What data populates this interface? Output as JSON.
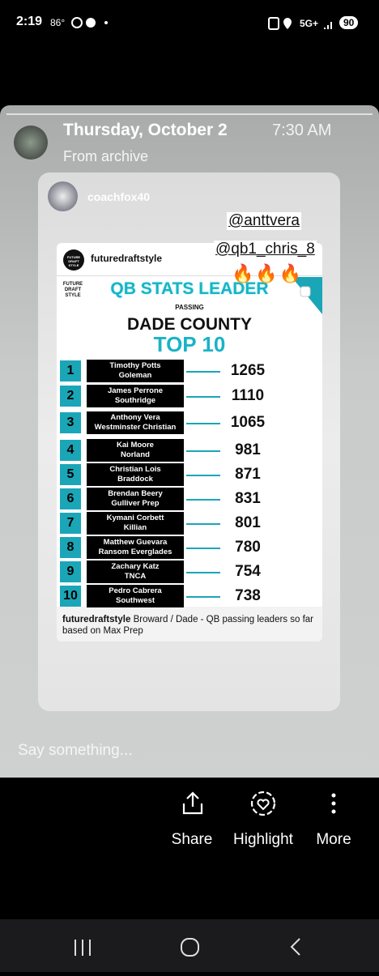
{
  "status_bar": {
    "time": "2:19",
    "temperature": "86°",
    "network": "5G+",
    "battery": "90"
  },
  "story": {
    "date": "Thursday, October 2",
    "time": "7:30 AM",
    "source": "From archive"
  },
  "post": {
    "username": "coachfox40",
    "mentions": [
      "@anttvera",
      "@qb1_chris_8"
    ],
    "emoji": "🔥🔥🔥",
    "image": {
      "account": "futuredraftstyle",
      "logo": "FUTURE DRAFT STYLE",
      "brand": "FUTURE DRAFT STYLE",
      "title": "QB STATS LEADER",
      "subtitle": "PASSING",
      "region": "DADE COUNTY",
      "heading": "TOP 10",
      "rows": [
        {
          "rank": 1,
          "name": "Timothy Potts",
          "school": "Goleman",
          "yards": 1265
        },
        {
          "rank": 2,
          "name": "James Perrone",
          "school": "Southridge",
          "yards": 1110
        },
        {
          "rank": 3,
          "name": "Anthony Vera",
          "school": "Westminster Christian",
          "yards": 1065
        },
        {
          "rank": 4,
          "name": "Kai Moore",
          "school": "Norland",
          "yards": 981
        },
        {
          "rank": 5,
          "name": "Christian Lois",
          "school": "Braddock",
          "yards": 871
        },
        {
          "rank": 6,
          "name": "Brendan Beery",
          "school": "Gulliver Prep",
          "yards": 831
        },
        {
          "rank": 7,
          "name": "Kymani Corbett",
          "school": "Killian",
          "yards": 801
        },
        {
          "rank": 8,
          "name": "Matthew Guevara",
          "school": "Ransom Everglades",
          "yards": 780
        },
        {
          "rank": 9,
          "name": "Zachary Katz",
          "school": "TNCA",
          "yards": 754
        },
        {
          "rank": 10,
          "name": "Pedro Cabrera",
          "school": "Southwest",
          "yards": 738
        }
      ]
    },
    "caption": {
      "account": "futuredraftstyle",
      "text": "Broward / Dade - QB passing leaders so far based on Max Prep"
    }
  },
  "reply": {
    "placeholder": "Say something..."
  },
  "actions": [
    "Share",
    "Highlight",
    "More"
  ]
}
